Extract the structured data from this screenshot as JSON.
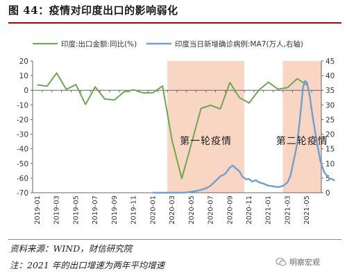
{
  "figure": {
    "title": "图 44：疫情对印度出口的影响弱化",
    "source": "资料来源：WIND，财信研究院",
    "footnote": "注：2021 年的出口增速为两年平均增速",
    "watermark": "明察宏观"
  },
  "colors": {
    "title_rule": "#c00000",
    "export_line": "#6aa84f",
    "cases_line": "#6d9fd0",
    "shade": "#f9d5c4"
  },
  "chart_data": {
    "type": "line",
    "x": [
      "2019-01",
      "2019-02",
      "2019-03",
      "2019-04",
      "2019-05",
      "2019-06",
      "2019-07",
      "2019-08",
      "2019-09",
      "2019-10",
      "2019-11",
      "2019-12",
      "2020-01",
      "2020-02",
      "2020-03",
      "2020-04",
      "2020-05",
      "2020-06",
      "2020-07",
      "2020-08",
      "2020-09",
      "2020-10",
      "2020-11",
      "2020-12",
      "2021-01",
      "2021-02",
      "2021-03",
      "2021-04",
      "2021-05",
      "2021-06"
    ],
    "x_tick_labels": [
      "2019-01",
      "2019-03",
      "2019-05",
      "2019-07",
      "2019-09",
      "2019-11",
      "2020-01",
      "2020-03",
      "2020-05",
      "2020-07",
      "2020-09",
      "2020-11",
      "2021-01",
      "2021-03",
      "2021-05"
    ],
    "left_axis": {
      "ylim": [
        -70,
        20
      ],
      "ticks": [
        20,
        10,
        0,
        -10,
        -20,
        -30,
        -40,
        -50,
        -60,
        -70
      ]
    },
    "right_axis": {
      "ylim": [
        0,
        45
      ],
      "ticks": [
        45,
        40,
        35,
        30,
        25,
        20,
        15,
        10,
        5,
        0
      ]
    },
    "series": [
      {
        "name": "印度:出口金额:同比(%)",
        "axis": "left",
        "color": "#6aa84f",
        "x": [
          "2019-01",
          "2019-02",
          "2019-03",
          "2019-04",
          "2019-05",
          "2019-06",
          "2019-07",
          "2019-08",
          "2019-09",
          "2019-10",
          "2019-11",
          "2019-12",
          "2020-01",
          "2020-02",
          "2020-03",
          "2020-04",
          "2020-05",
          "2020-06",
          "2020-07",
          "2020-08",
          "2020-09",
          "2020-10",
          "2020-11",
          "2020-12",
          "2021-01",
          "2021-02",
          "2021-03",
          "2021-04",
          "2021-05"
        ],
        "values": [
          3.7,
          2.8,
          11.8,
          0.6,
          3.9,
          -9.7,
          2.3,
          -6.0,
          -6.6,
          -1.1,
          0.3,
          -1.8,
          -1.7,
          2.9,
          -34.6,
          -60.3,
          -36.5,
          -12.4,
          -10.2,
          -12.7,
          5.3,
          -5.1,
          -8.7,
          0.1,
          5.5,
          0.7,
          1.9,
          7.9,
          3.7
        ]
      },
      {
        "name": "印度当日新增确诊病例:MA7(万人,右轴)",
        "axis": "right",
        "color": "#6d9fd0",
        "points": [
          [
            0.0,
            0.0
          ],
          [
            3.0,
            0.0
          ],
          [
            3.5,
            0.1
          ],
          [
            4.0,
            0.3
          ],
          [
            4.5,
            0.6
          ],
          [
            5.0,
            1.0
          ],
          [
            5.5,
            1.5
          ],
          [
            6.0,
            2.4
          ],
          [
            6.5,
            4.0
          ],
          [
            7.0,
            5.6
          ],
          [
            7.5,
            6.4
          ],
          [
            8.0,
            8.6
          ],
          [
            8.3,
            9.3
          ],
          [
            8.6,
            8.4
          ],
          [
            9.0,
            7.3
          ],
          [
            9.3,
            5.5
          ],
          [
            9.7,
            4.6
          ],
          [
            10.0,
            4.7
          ],
          [
            10.3,
            3.8
          ],
          [
            10.7,
            4.3
          ],
          [
            11.0,
            3.6
          ],
          [
            11.5,
            3.1
          ],
          [
            12.0,
            2.4
          ],
          [
            12.5,
            2.2
          ],
          [
            13.0,
            1.9
          ],
          [
            13.5,
            2.3
          ],
          [
            14.0,
            3.6
          ],
          [
            14.3,
            5.9
          ],
          [
            14.6,
            10.5
          ],
          [
            15.0,
            16.8
          ],
          [
            15.3,
            26.0
          ],
          [
            15.6,
            36.0
          ],
          [
            15.8,
            38.2
          ],
          [
            16.0,
            37.7
          ],
          [
            16.3,
            33.0
          ],
          [
            16.6,
            26.0
          ],
          [
            17.0,
            18.0
          ],
          [
            17.4,
            10.8
          ],
          [
            17.8,
            7.0
          ],
          [
            18.3,
            5.0
          ],
          [
            18.9,
            4.2
          ]
        ]
      }
    ],
    "shaded_regions": [
      {
        "label": "第一轮疫情",
        "from": "2020-03",
        "to": "2020-10"
      },
      {
        "label": "第二轮疫情",
        "from": "2021-03",
        "to": "2021-06"
      }
    ],
    "legend_position": "top",
    "grid": false
  }
}
